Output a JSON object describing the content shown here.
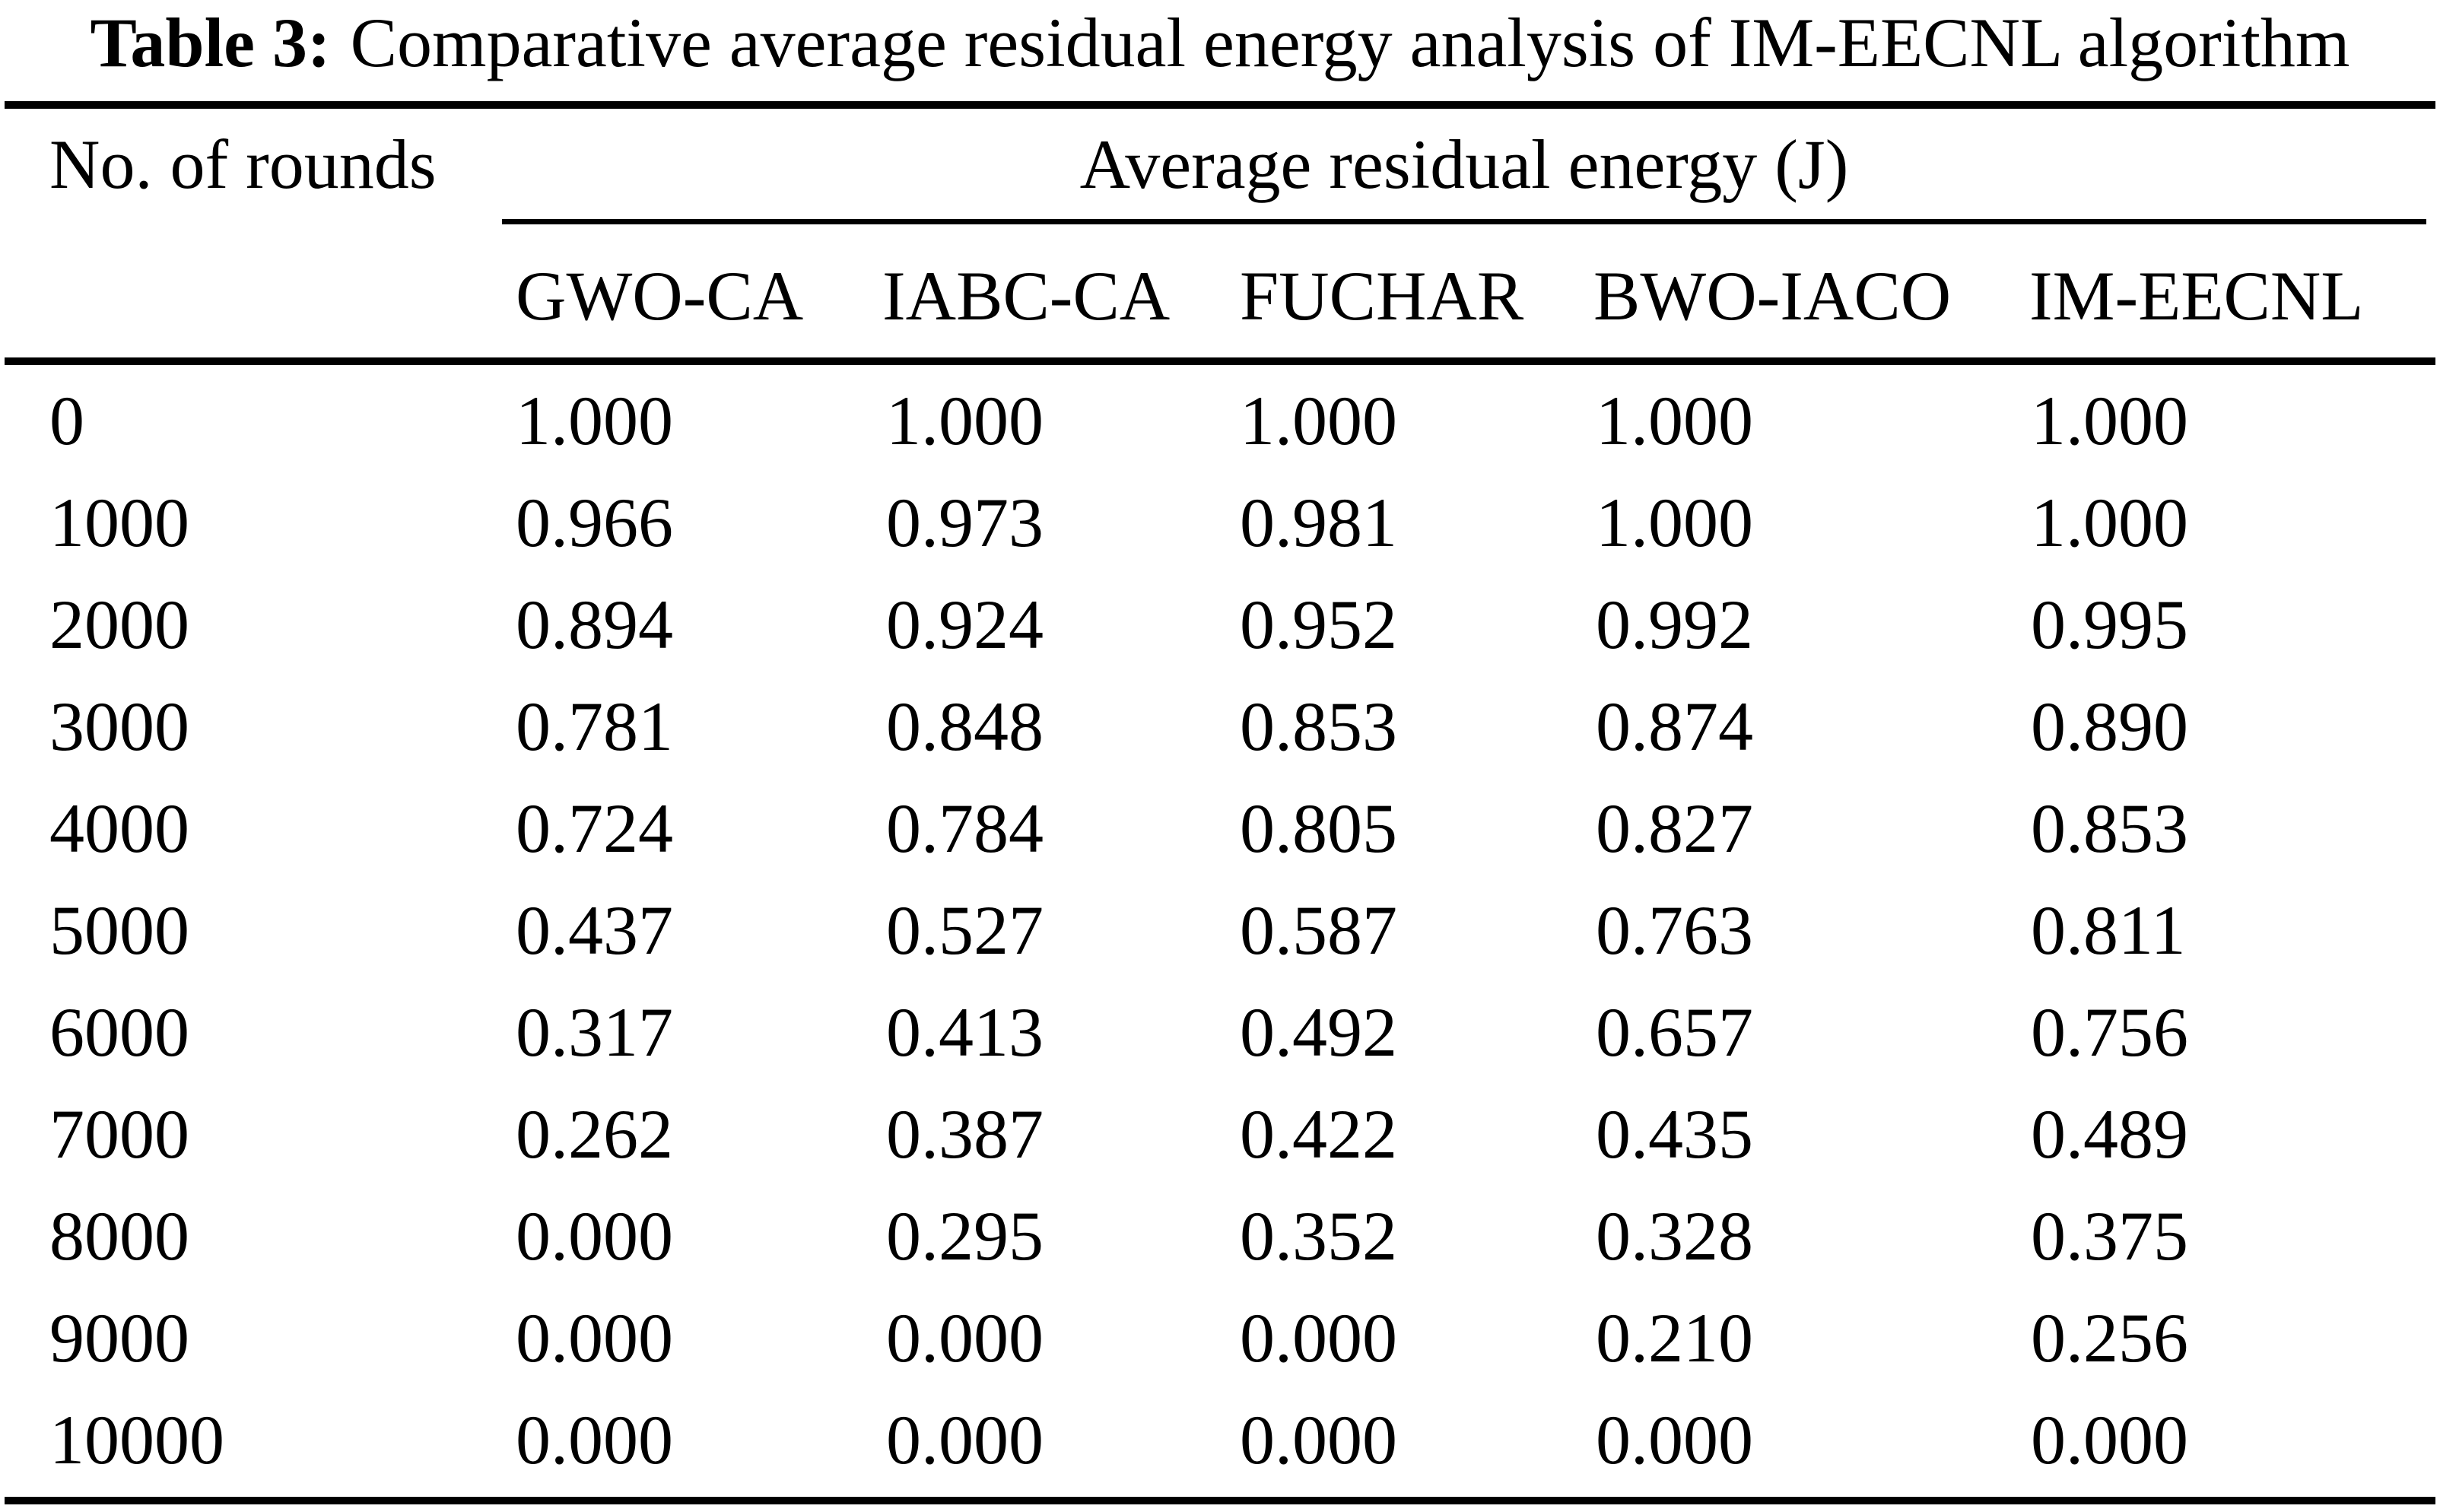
{
  "caption": {
    "label": "Table 3:",
    "text": "Comparative average residual energy analysis of IM-EECNL algorithm"
  },
  "header": {
    "row_header": "No. of rounds",
    "group_header": "Average residual energy (J)",
    "columns": [
      "GWO-CA",
      "IABC-CA",
      "FUCHAR",
      "BWO-IACO",
      "IM-EECNL"
    ]
  },
  "rows": [
    {
      "rounds": "0",
      "values": [
        "1.000",
        "1.000",
        "1.000",
        "1.000",
        "1.000"
      ]
    },
    {
      "rounds": "1000",
      "values": [
        "0.966",
        "0.973",
        "0.981",
        "1.000",
        "1.000"
      ]
    },
    {
      "rounds": "2000",
      "values": [
        "0.894",
        "0.924",
        "0.952",
        "0.992",
        "0.995"
      ]
    },
    {
      "rounds": "3000",
      "values": [
        "0.781",
        "0.848",
        "0.853",
        "0.874",
        "0.890"
      ]
    },
    {
      "rounds": "4000",
      "values": [
        "0.724",
        "0.784",
        "0.805",
        "0.827",
        "0.853"
      ]
    },
    {
      "rounds": "5000",
      "values": [
        "0.437",
        "0.527",
        "0.587",
        "0.763",
        "0.811"
      ]
    },
    {
      "rounds": "6000",
      "values": [
        "0.317",
        "0.413",
        "0.492",
        "0.657",
        "0.756"
      ]
    },
    {
      "rounds": "7000",
      "values": [
        "0.262",
        "0.387",
        "0.422",
        "0.435",
        "0.489"
      ]
    },
    {
      "rounds": "8000",
      "values": [
        "0.000",
        "0.295",
        "0.352",
        "0.328",
        "0.375"
      ]
    },
    {
      "rounds": "9000",
      "values": [
        "0.000",
        "0.000",
        "0.000",
        "0.210",
        "0.256"
      ]
    },
    {
      "rounds": "10000",
      "values": [
        "0.000",
        "0.000",
        "0.000",
        "0.000",
        "0.000"
      ]
    }
  ],
  "colors": {
    "text": "#000000",
    "background": "#ffffff"
  }
}
